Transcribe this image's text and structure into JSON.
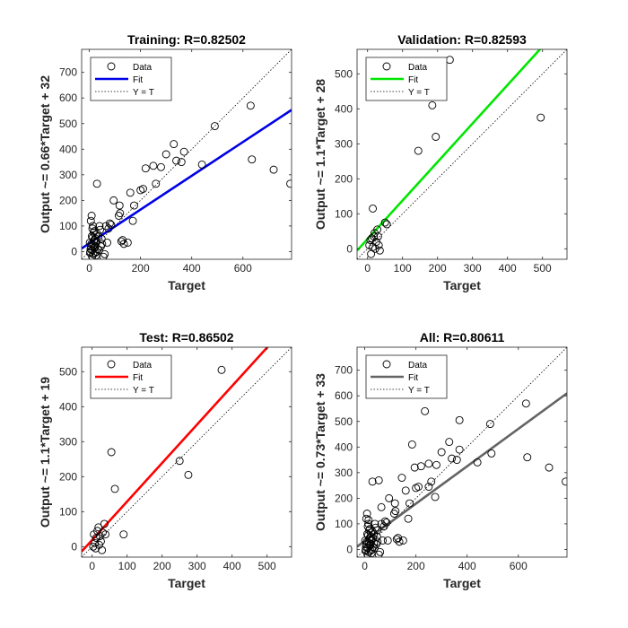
{
  "colors": {
    "training": "#0000e6",
    "validation": "#00e600",
    "test": "#ff0000",
    "all": "#646464",
    "reference": "#000000",
    "axis": "#262626",
    "marker": "#000000"
  },
  "chart_data": [
    {
      "type": "scatter",
      "title": "Training: R=0.82502",
      "xlabel": "Target",
      "ylabel": "Output ~= 0.66*Target + 32",
      "xlim": [
        -30,
        790
      ],
      "ylim": [
        -30,
        790
      ],
      "xticks": [
        0,
        200,
        400,
        600
      ],
      "yticks": [
        0,
        100,
        200,
        300,
        400,
        500,
        600,
        700
      ],
      "fit": {
        "slope": 0.66,
        "intercept": 32
      },
      "fit_color_key": "training",
      "grid": false,
      "legend": {
        "position": "top-left",
        "entries": [
          "Data",
          "Fit",
          "Y = T"
        ]
      },
      "series": [
        {
          "name": "Data",
          "points": [
            [
              5,
              10
            ],
            [
              8,
              30
            ],
            [
              10,
              60
            ],
            [
              12,
              5
            ],
            [
              15,
              -10
            ],
            [
              18,
              40
            ],
            [
              20,
              80
            ],
            [
              22,
              20
            ],
            [
              25,
              50
            ],
            [
              28,
              0
            ],
            [
              30,
              70
            ],
            [
              3,
              -5
            ],
            [
              6,
              120
            ],
            [
              9,
              140
            ],
            [
              12,
              90
            ],
            [
              14,
              100
            ],
            [
              16,
              25
            ],
            [
              19,
              45
            ],
            [
              21,
              15
            ],
            [
              24,
              65
            ],
            [
              26,
              -15
            ],
            [
              35,
              60
            ],
            [
              40,
              100
            ],
            [
              45,
              20
            ],
            [
              50,
              30
            ],
            [
              55,
              -20
            ],
            [
              60,
              -10
            ],
            [
              65,
              100
            ],
            [
              70,
              35
            ],
            [
              75,
              90
            ],
            [
              80,
              110
            ],
            [
              85,
              105
            ],
            [
              95,
              200
            ],
            [
              30,
              265
            ],
            [
              115,
              140
            ],
            [
              118,
              180
            ],
            [
              120,
              150
            ],
            [
              125,
              40
            ],
            [
              130,
              45
            ],
            [
              135,
              30
            ],
            [
              150,
              35
            ],
            [
              160,
              230
            ],
            [
              170,
              120
            ],
            [
              175,
              180
            ],
            [
              200,
              240
            ],
            [
              210,
              245
            ],
            [
              220,
              325
            ],
            [
              250,
              335
            ],
            [
              260,
              265
            ],
            [
              280,
              330
            ],
            [
              300,
              380
            ],
            [
              330,
              420
            ],
            [
              340,
              355
            ],
            [
              360,
              350
            ],
            [
              370,
              390
            ],
            [
              440,
              340
            ],
            [
              490,
              490
            ],
            [
              630,
              570
            ],
            [
              635,
              360
            ],
            [
              720,
              320
            ],
            [
              785,
              265
            ],
            [
              2,
              35
            ],
            [
              4,
              0
            ],
            [
              7,
              20
            ],
            [
              11,
              -20
            ],
            [
              13,
              55
            ],
            [
              17,
              75
            ],
            [
              23,
              -5
            ],
            [
              27,
              35
            ],
            [
              33,
              10
            ],
            [
              38,
              5
            ],
            [
              42,
              85
            ],
            [
              48,
              50
            ]
          ]
        }
      ]
    },
    {
      "type": "scatter",
      "title": "Validation: R=0.82593",
      "xlabel": "Target",
      "ylabel": "Output ~= 1.1*Target + 28",
      "xlim": [
        -30,
        570
      ],
      "ylim": [
        -30,
        570
      ],
      "xticks": [
        0,
        100,
        200,
        300,
        400,
        500
      ],
      "yticks": [
        0,
        100,
        200,
        300,
        400,
        500
      ],
      "fit": {
        "slope": 1.1,
        "intercept": 28
      },
      "fit_color_key": "validation",
      "grid": false,
      "legend": {
        "position": "top-left",
        "entries": [
          "Data",
          "Fit",
          "Y = T"
        ]
      },
      "series": [
        {
          "name": "Data",
          "points": [
            [
              5,
              10
            ],
            [
              8,
              25
            ],
            [
              10,
              -15
            ],
            [
              12,
              30
            ],
            [
              15,
              5
            ],
            [
              18,
              35
            ],
            [
              20,
              45
            ],
            [
              22,
              0
            ],
            [
              25,
              20
            ],
            [
              28,
              55
            ],
            [
              30,
              35
            ],
            [
              32,
              10
            ],
            [
              35,
              -5
            ],
            [
              15,
              115
            ],
            [
              50,
              75
            ],
            [
              55,
              70
            ],
            [
              145,
              280
            ],
            [
              185,
              410
            ],
            [
              195,
              320
            ],
            [
              235,
              540
            ],
            [
              495,
              375
            ]
          ]
        }
      ]
    },
    {
      "type": "scatter",
      "title": "Test: R=0.86502",
      "xlabel": "Target",
      "ylabel": "Output ~= 1.1*Target + 19",
      "xlim": [
        -30,
        570
      ],
      "ylim": [
        -30,
        570
      ],
      "xticks": [
        0,
        100,
        200,
        300,
        400,
        500
      ],
      "yticks": [
        0,
        100,
        200,
        300,
        400,
        500
      ],
      "fit": {
        "slope": 1.1,
        "intercept": 19
      },
      "fit_color_key": "test",
      "grid": false,
      "legend": {
        "position": "top-left",
        "entries": [
          "Data",
          "Fit",
          "Y = T"
        ]
      },
      "series": [
        {
          "name": "Data",
          "points": [
            [
              3,
              0
            ],
            [
              5,
              35
            ],
            [
              8,
              10
            ],
            [
              10,
              -5
            ],
            [
              12,
              25
            ],
            [
              15,
              45
            ],
            [
              18,
              55
            ],
            [
              20,
              5
            ],
            [
              22,
              30
            ],
            [
              25,
              15
            ],
            [
              28,
              -10
            ],
            [
              30,
              40
            ],
            [
              35,
              65
            ],
            [
              38,
              35
            ],
            [
              55,
              270
            ],
            [
              65,
              165
            ],
            [
              90,
              35
            ],
            [
              250,
              245
            ],
            [
              275,
              205
            ],
            [
              370,
              505
            ]
          ]
        }
      ]
    },
    {
      "type": "scatter",
      "title": "All: R=0.80611",
      "xlabel": "Target",
      "ylabel": "Output ~= 0.73*Target + 33",
      "xlim": [
        -30,
        790
      ],
      "ylim": [
        -30,
        790
      ],
      "xticks": [
        0,
        200,
        400,
        600
      ],
      "yticks": [
        0,
        100,
        200,
        300,
        400,
        500,
        600,
        700
      ],
      "fit": {
        "slope": 0.73,
        "intercept": 33
      },
      "fit_color_key": "all",
      "grid": false,
      "legend": {
        "position": "top-left",
        "entries": [
          "Data",
          "Fit",
          "Y = T"
        ]
      },
      "series": [
        {
          "name": "Data",
          "points": [
            [
              5,
              10
            ],
            [
              8,
              30
            ],
            [
              10,
              60
            ],
            [
              12,
              5
            ],
            [
              15,
              -10
            ],
            [
              18,
              40
            ],
            [
              20,
              80
            ],
            [
              22,
              20
            ],
            [
              25,
              50
            ],
            [
              28,
              0
            ],
            [
              30,
              70
            ],
            [
              3,
              -5
            ],
            [
              6,
              120
            ],
            [
              9,
              140
            ],
            [
              12,
              90
            ],
            [
              14,
              100
            ],
            [
              16,
              25
            ],
            [
              19,
              45
            ],
            [
              21,
              15
            ],
            [
              24,
              65
            ],
            [
              26,
              -15
            ],
            [
              35,
              60
            ],
            [
              40,
              100
            ],
            [
              45,
              20
            ],
            [
              50,
              30
            ],
            [
              55,
              -20
            ],
            [
              60,
              -10
            ],
            [
              65,
              100
            ],
            [
              70,
              35
            ],
            [
              75,
              90
            ],
            [
              80,
              110
            ],
            [
              85,
              105
            ],
            [
              95,
              200
            ],
            [
              30,
              265
            ],
            [
              115,
              140
            ],
            [
              118,
              180
            ],
            [
              120,
              150
            ],
            [
              125,
              40
            ],
            [
              130,
              45
            ],
            [
              135,
              30
            ],
            [
              150,
              35
            ],
            [
              160,
              230
            ],
            [
              170,
              120
            ],
            [
              175,
              180
            ],
            [
              200,
              240
            ],
            [
              210,
              245
            ],
            [
              220,
              325
            ],
            [
              250,
              335
            ],
            [
              260,
              265
            ],
            [
              280,
              330
            ],
            [
              300,
              380
            ],
            [
              330,
              420
            ],
            [
              340,
              355
            ],
            [
              360,
              350
            ],
            [
              370,
              390
            ],
            [
              440,
              340
            ],
            [
              490,
              490
            ],
            [
              630,
              570
            ],
            [
              635,
              360
            ],
            [
              720,
              320
            ],
            [
              785,
              265
            ],
            [
              15,
              115
            ],
            [
              50,
              75
            ],
            [
              55,
              270
            ],
            [
              65,
              165
            ],
            [
              90,
              35
            ],
            [
              145,
              280
            ],
            [
              185,
              410
            ],
            [
              195,
              320
            ],
            [
              235,
              540
            ],
            [
              250,
              245
            ],
            [
              275,
              205
            ],
            [
              370,
              505
            ],
            [
              495,
              375
            ],
            [
              2,
              35
            ],
            [
              4,
              0
            ],
            [
              7,
              20
            ],
            [
              11,
              -20
            ],
            [
              13,
              55
            ],
            [
              17,
              75
            ],
            [
              23,
              -5
            ],
            [
              27,
              35
            ],
            [
              33,
              10
            ],
            [
              38,
              5
            ],
            [
              42,
              85
            ],
            [
              48,
              50
            ],
            [
              32,
              45
            ],
            [
              36,
              25
            ]
          ]
        }
      ]
    }
  ]
}
